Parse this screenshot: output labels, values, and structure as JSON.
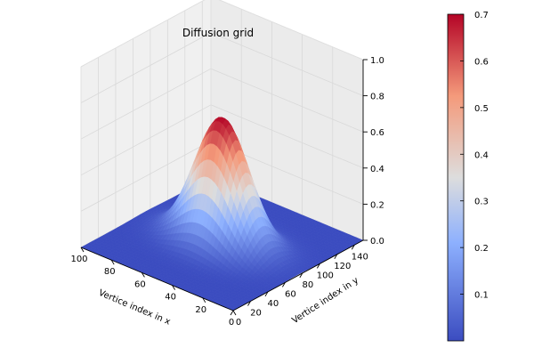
{
  "chart_data": {
    "type": "surface",
    "title": "Diffusion grid",
    "xlabel": "Vertice index in x",
    "ylabel": "Vertice index in y",
    "zlabel": "",
    "x_range": [
      0,
      100
    ],
    "y_range": [
      0,
      150
    ],
    "z_range": [
      0,
      1.0
    ],
    "x_ticks": [
      "0",
      "20",
      "40",
      "60",
      "80",
      "100"
    ],
    "y_ticks": [
      "0",
      "20",
      "40",
      "60",
      "80",
      "100",
      "120",
      "140"
    ],
    "z_ticks": [
      "0.0",
      "0.2",
      "0.4",
      "0.6",
      "0.8",
      "1.0"
    ],
    "peak": {
      "x": 50,
      "y": 75,
      "z": 0.7
    },
    "colormap": "coolwarm",
    "colorbar": {
      "ticks": [
        "0.1",
        "0.2",
        "0.3",
        "0.4",
        "0.5",
        "0.6",
        "0.7"
      ],
      "range": [
        0.0,
        0.7
      ],
      "colors": {
        "low": "#3b4cc0",
        "low_mid": "#8db0fe",
        "mid": "#dddddd",
        "high_mid": "#f49a7b",
        "high": "#b40426"
      }
    },
    "grid": true,
    "pane_color": "#f2f2f2",
    "grid_color": "#d9d9d9"
  }
}
